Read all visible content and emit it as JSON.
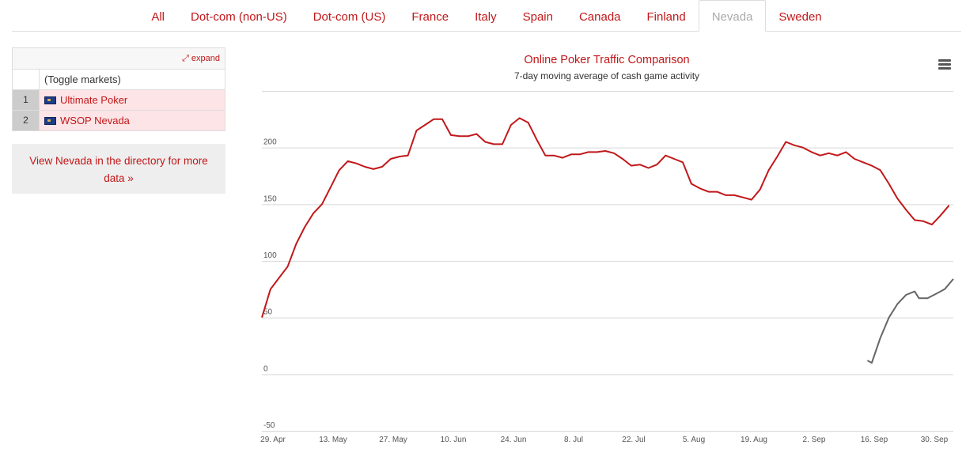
{
  "tabs": [
    {
      "label": "All"
    },
    {
      "label": "Dot-com (non-US)"
    },
    {
      "label": "Dot-com (US)"
    },
    {
      "label": "France"
    },
    {
      "label": "Italy"
    },
    {
      "label": "Spain"
    },
    {
      "label": "Canada"
    },
    {
      "label": "Finland"
    },
    {
      "label": "Nevada",
      "active": true
    },
    {
      "label": "Sweden"
    }
  ],
  "markets": {
    "expand_label": "expand",
    "toggle_label": "(Toggle markets)",
    "rows": [
      {
        "num": "1",
        "label": "Ultimate Poker"
      },
      {
        "num": "2",
        "label": "WSOP Nevada"
      }
    ]
  },
  "directory_link": "View Nevada in the directory for more data »",
  "colors": {
    "accent": "#c1181a",
    "series_1": "#c1181a",
    "series_2": "#666666"
  },
  "chart_data": {
    "type": "line",
    "title": "Online Poker Traffic Comparison",
    "subtitle": "7-day moving average of cash game activity",
    "xlabel": "",
    "ylabel": "",
    "x_ticks": [
      "29. Apr",
      "13. May",
      "27. May",
      "10. Jun",
      "24. Jun",
      "8. Jul",
      "22. Jul",
      "5. Aug",
      "19. Aug",
      "2. Sep",
      "16. Sep",
      "30. Sep"
    ],
    "y_ticks": [
      -50,
      0,
      50,
      100,
      150,
      200
    ],
    "ylim": [
      -50,
      250
    ],
    "grid": true,
    "legend": "none",
    "series": [
      {
        "name": "Ultimate Poker",
        "points": [
          [
            "29. Apr",
            50
          ],
          [
            "1. May",
            75
          ],
          [
            "3. May",
            85
          ],
          [
            "5. May",
            95
          ],
          [
            "7. May",
            115
          ],
          [
            "9. May",
            130
          ],
          [
            "11. May",
            142
          ],
          [
            "13. May",
            150
          ],
          [
            "15. May",
            165
          ],
          [
            "17. May",
            180
          ],
          [
            "19. May",
            188
          ],
          [
            "21. May",
            186
          ],
          [
            "23. May",
            183
          ],
          [
            "25. May",
            181
          ],
          [
            "27. May",
            183
          ],
          [
            "29. May",
            190
          ],
          [
            "31. May",
            192
          ],
          [
            "2. Jun",
            193
          ],
          [
            "4. Jun",
            215
          ],
          [
            "6. Jun",
            220
          ],
          [
            "8. Jun",
            225
          ],
          [
            "10. Jun",
            225
          ],
          [
            "12. Jun",
            211
          ],
          [
            "14. Jun",
            210
          ],
          [
            "16. Jun",
            210
          ],
          [
            "18. Jun",
            212
          ],
          [
            "20. Jun",
            205
          ],
          [
            "22. Jun",
            203
          ],
          [
            "24. Jun",
            203
          ],
          [
            "26. Jun",
            220
          ],
          [
            "28. Jun",
            226
          ],
          [
            "30. Jun",
            222
          ],
          [
            "2. Jul",
            207
          ],
          [
            "4. Jul",
            193
          ],
          [
            "6. Jul",
            193
          ],
          [
            "8. Jul",
            191
          ],
          [
            "10. Jul",
            194
          ],
          [
            "12. Jul",
            194
          ],
          [
            "14. Jul",
            196
          ],
          [
            "16. Jul",
            196
          ],
          [
            "18. Jul",
            197
          ],
          [
            "20. Jul",
            195
          ],
          [
            "22. Jul",
            190
          ],
          [
            "24. Jul",
            184
          ],
          [
            "26. Jul",
            185
          ],
          [
            "28. Jul",
            182
          ],
          [
            "30. Jul",
            185
          ],
          [
            "1. Aug",
            193
          ],
          [
            "3. Aug",
            190
          ],
          [
            "5. Aug",
            187
          ],
          [
            "7. Aug",
            168
          ],
          [
            "9. Aug",
            164
          ],
          [
            "11. Aug",
            161
          ],
          [
            "13. Aug",
            161
          ],
          [
            "15. Aug",
            158
          ],
          [
            "17. Aug",
            158
          ],
          [
            "19. Aug",
            156
          ],
          [
            "21. Aug",
            154
          ],
          [
            "23. Aug",
            163
          ],
          [
            "25. Aug",
            180
          ],
          [
            "27. Aug",
            192
          ],
          [
            "29. Aug",
            205
          ],
          [
            "31. Aug",
            202
          ],
          [
            "2. Sep",
            200
          ],
          [
            "4. Sep",
            196
          ],
          [
            "6. Sep",
            193
          ],
          [
            "8. Sep",
            195
          ],
          [
            "10. Sep",
            193
          ],
          [
            "12. Sep",
            196
          ],
          [
            "14. Sep",
            190
          ],
          [
            "16. Sep",
            187
          ],
          [
            "18. Sep",
            184
          ],
          [
            "20. Sep",
            180
          ],
          [
            "22. Sep",
            168
          ],
          [
            "24. Sep",
            155
          ],
          [
            "26. Sep",
            145
          ],
          [
            "28. Sep",
            136
          ],
          [
            "30. Sep",
            135
          ],
          [
            "2. Oct",
            132
          ],
          [
            "4. Oct",
            140
          ],
          [
            "6. Oct",
            149
          ]
        ]
      },
      {
        "name": "WSOP Nevada",
        "points": [
          [
            "17. Sep",
            12
          ],
          [
            "18. Sep",
            10
          ],
          [
            "20. Sep",
            32
          ],
          [
            "22. Sep",
            50
          ],
          [
            "24. Sep",
            62
          ],
          [
            "26. Sep",
            70
          ],
          [
            "28. Sep",
            73
          ],
          [
            "29. Sep",
            67
          ],
          [
            "1. Oct",
            67
          ],
          [
            "3. Oct",
            71
          ],
          [
            "5. Oct",
            75
          ],
          [
            "7. Oct",
            84
          ]
        ]
      }
    ]
  }
}
